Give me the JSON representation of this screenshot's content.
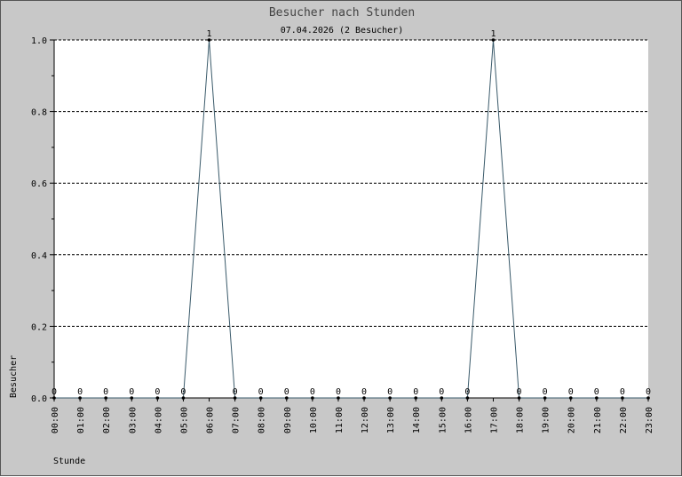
{
  "chart_data": {
    "type": "line",
    "title": "Besucher nach Stunden",
    "subtitle": "07.04.2026 (2 Besucher)",
    "xlabel": "Stunde",
    "ylabel": "Besucher",
    "categories": [
      "00:00",
      "01:00",
      "02:00",
      "03:00",
      "04:00",
      "05:00",
      "06:00",
      "07:00",
      "08:00",
      "09:00",
      "10:00",
      "11:00",
      "12:00",
      "13:00",
      "14:00",
      "15:00",
      "16:00",
      "17:00",
      "18:00",
      "19:00",
      "20:00",
      "21:00",
      "22:00",
      "23:00"
    ],
    "values": [
      0,
      0,
      0,
      0,
      0,
      0,
      1,
      0,
      0,
      0,
      0,
      0,
      0,
      0,
      0,
      0,
      0,
      1,
      0,
      0,
      0,
      0,
      0,
      0
    ],
    "ylim": [
      0,
      1
    ],
    "yticks": [
      "0.0",
      "0.2",
      "0.4",
      "0.6",
      "0.8",
      "1.0"
    ],
    "grid": true,
    "colors": {
      "background": "#c8c8c8",
      "plot": "#ffffff",
      "line": "#3a5a6a",
      "text": "#000000",
      "title": "#444444",
      "grid": "#000000"
    }
  }
}
